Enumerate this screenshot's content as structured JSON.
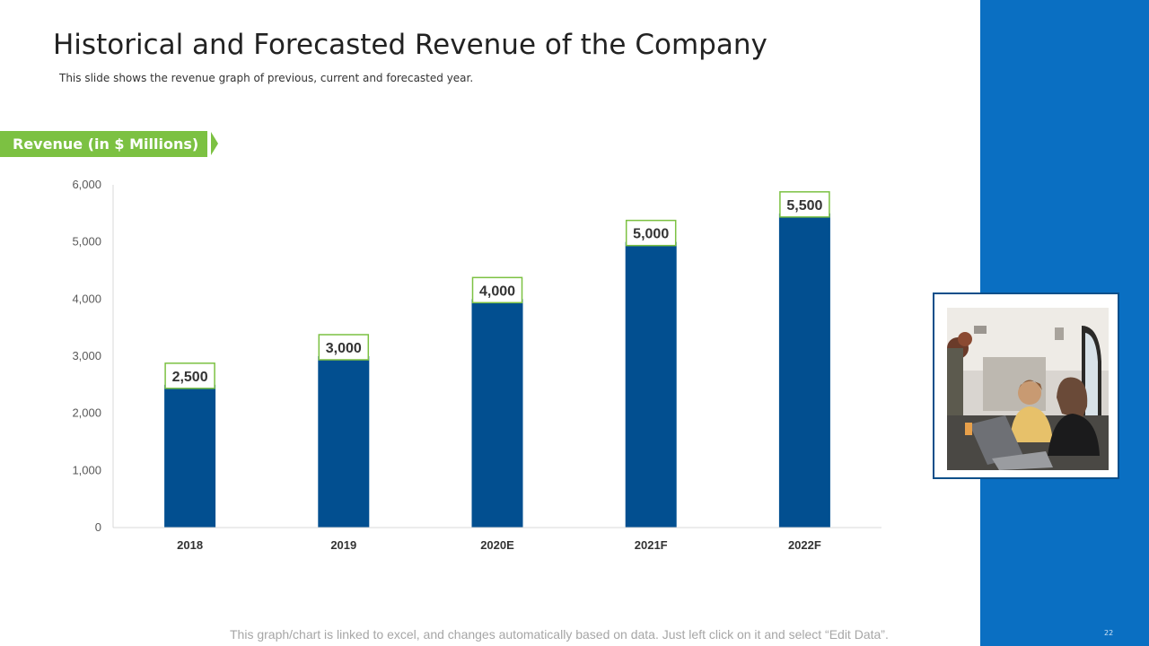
{
  "slide": {
    "title": "Historical and Forecasted Revenue of the Company",
    "subtitle": "This slide shows the revenue graph of previous, current and forecasted year.",
    "badge_label": "Revenue (in $ Millions)",
    "footer_note": "This graph/chart is linked to excel, and changes automatically based on data. Just left click on it and select “Edit Data”.",
    "page_number": "22"
  },
  "photo": {
    "icon": "photo-two-people-at-laptop"
  },
  "colors": {
    "bar": "#024f90",
    "label_border": "#7cc142",
    "accent_panel": "#0a6fc2",
    "badge": "#7cc142"
  },
  "chart_data": {
    "type": "bar",
    "categories": [
      "2018",
      "2019",
      "2020E",
      "2021F",
      "2022F"
    ],
    "values": [
      2500,
      3000,
      4000,
      5000,
      5500
    ],
    "data_labels": [
      "2,500",
      "3,000",
      "4,000",
      "5,000",
      "5,500"
    ],
    "y_ticks": [
      0,
      1000,
      2000,
      3000,
      4000,
      5000,
      6000
    ],
    "y_tick_labels": [
      "0",
      "1,000",
      "2,000",
      "3,000",
      "4,000",
      "5,000",
      "6,000"
    ],
    "ylim": [
      0,
      6000
    ],
    "title": "",
    "xlabel": "",
    "ylabel": "",
    "grid": false,
    "legend": "none"
  }
}
